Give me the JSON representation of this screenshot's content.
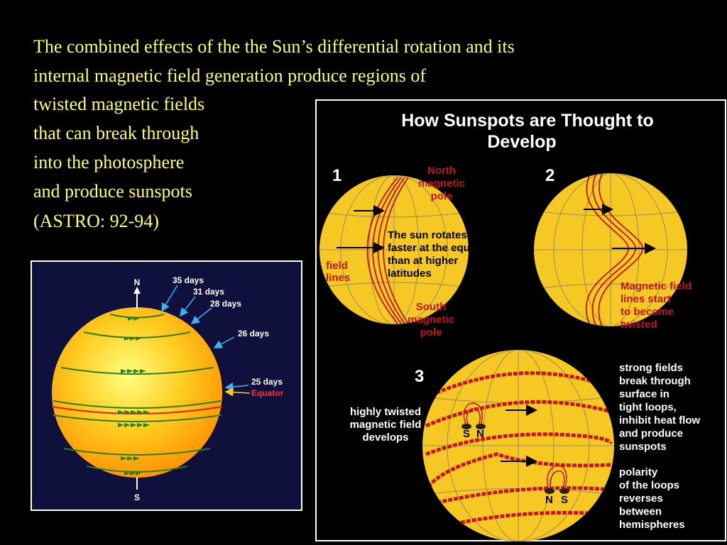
{
  "text_lines": [
    "The combined effects of the the Sun’s differential rotation and its",
    "internal magnetic field generation produce regions of",
    "twisted magnetic fields",
    "that can break through",
    "into the photosphere",
    "and produce sunspots",
    "(ASTRO: 92-94)"
  ],
  "left_figure": {
    "north": "N",
    "south": "S",
    "periods": [
      "35 days",
      "31 days",
      "28 days",
      "26 days",
      "25 days"
    ],
    "equator": "Equator"
  },
  "right_figure": {
    "title_lines": [
      "How Sunspots are Thought to",
      "Develop"
    ],
    "panel_1": {
      "number": "1",
      "north_pole": [
        "North",
        "magnetic",
        "pole"
      ],
      "rotation_note": [
        "The sun rotates",
        "faster at the equato",
        "than at higher",
        "latitudes"
      ],
      "field_lines": [
        "field",
        "lines"
      ],
      "south_pole": [
        "South",
        "magnetic",
        "pole"
      ]
    },
    "panel_2": {
      "number": "2",
      "note": [
        "Magnetic field",
        "lines start",
        "to become",
        "twisted"
      ]
    },
    "panel_3": {
      "number": "3",
      "twist_note": [
        "highly twisted",
        "magnetic field",
        "develops"
      ],
      "loops_note": [
        "strong fields",
        "break through",
        "surface in",
        "tight loops,",
        "inhibit heat flow",
        "and produce",
        "sunspots"
      ],
      "polarity_note": [
        "polarity",
        "of the loops",
        "reverses",
        "between",
        "hemispheres"
      ],
      "spot_labels": [
        "S",
        "N",
        "N",
        "S"
      ]
    }
  }
}
